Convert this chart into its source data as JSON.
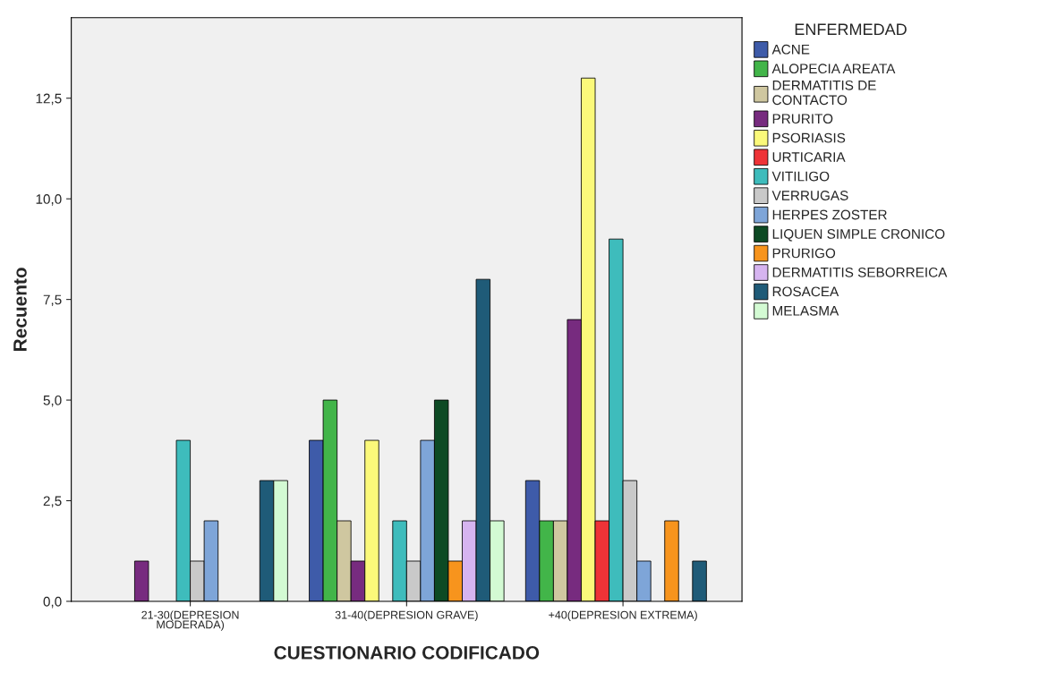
{
  "chart_data": {
    "type": "bar",
    "xlabel": "CUESTIONARIO CODIFICADO",
    "ylabel": "Recuento",
    "legend_title": "ENFERMEDAD",
    "categories": [
      "21-30(DEPRESION\nMODERADA)",
      "31-40(DEPRESION GRAVE)",
      "+40(DEPRESION EXTREMA)"
    ],
    "series": [
      {
        "name": "ACNE",
        "color": "#3e5ba9",
        "values": [
          null,
          4,
          3
        ]
      },
      {
        "name": "ALOPECIA AREATA",
        "color": "#42b549",
        "values": [
          null,
          5,
          2
        ]
      },
      {
        "name": "DERMATITIS DE\nCONTACTO",
        "color": "#cfc7a0",
        "values": [
          null,
          2,
          2
        ]
      },
      {
        "name": "PRURITO",
        "color": "#772b7f",
        "values": [
          1,
          1,
          7
        ]
      },
      {
        "name": "PSORIASIS",
        "color": "#fbf97a",
        "values": [
          null,
          4,
          13
        ]
      },
      {
        "name": "URTICARIA",
        "color": "#ee3337",
        "values": [
          null,
          null,
          2
        ]
      },
      {
        "name": "VITILIGO",
        "color": "#3ebcbc",
        "values": [
          4,
          2,
          9
        ]
      },
      {
        "name": "VERRUGAS",
        "color": "#c9c9c9",
        "values": [
          1,
          1,
          3
        ]
      },
      {
        "name": "HERPES ZOSTER",
        "color": "#7ea5d8",
        "values": [
          2,
          4,
          1
        ]
      },
      {
        "name": "LIQUEN SIMPLE CRONICO",
        "color": "#0d4a24",
        "values": [
          null,
          5,
          null
        ]
      },
      {
        "name": "PRURIGO",
        "color": "#f7941d",
        "values": [
          null,
          1,
          2
        ]
      },
      {
        "name": "DERMATITIS SEBORREICA",
        "color": "#d6b4f0",
        "values": [
          null,
          2,
          null
        ]
      },
      {
        "name": "ROSACEA",
        "color": "#1f5b78",
        "values": [
          3,
          8,
          1
        ]
      },
      {
        "name": "MELASMA",
        "color": "#d3fad3",
        "values": [
          3,
          2,
          null
        ]
      }
    ],
    "ylim": [
      0,
      14.5
    ],
    "yticks": [
      {
        "value": 0,
        "label": "0,0"
      },
      {
        "value": 2.5,
        "label": "2,5"
      },
      {
        "value": 5,
        "label": "5,0"
      },
      {
        "value": 7.5,
        "label": "7,5"
      },
      {
        "value": 10,
        "label": "10,0"
      },
      {
        "value": 12.5,
        "label": "12,5"
      }
    ],
    "grid": false,
    "legend": "right"
  }
}
